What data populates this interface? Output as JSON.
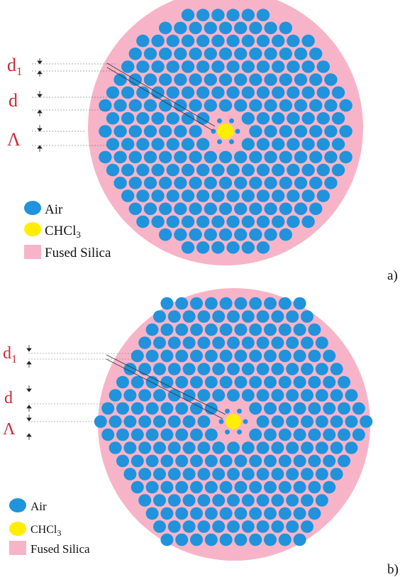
{
  "panels": [
    {
      "id": "a",
      "panel_label": "a)",
      "lattice": "circular",
      "dimension_labels": {
        "d1": "d",
        "d1_sub": "1",
        "d": "d",
        "pitch": "Λ"
      },
      "legend": [
        {
          "label": "Air",
          "color": "#1f93dc",
          "shape": "ellipse"
        },
        {
          "label": "CHCl",
          "sub": "3",
          "color": "#ffee00",
          "shape": "ellipse"
        },
        {
          "label": "Fused Silica",
          "color": "#f7b4c8",
          "shape": "square"
        }
      ]
    },
    {
      "id": "b",
      "panel_label": "b)",
      "lattice": "hexagonal",
      "dimension_labels": {
        "d1": "d",
        "d1_sub": "1",
        "d": "d",
        "pitch": "Λ"
      },
      "legend": [
        {
          "label": "Air",
          "color": "#1f93dc",
          "shape": "ellipse"
        },
        {
          "label": "CHCl",
          "sub": "3",
          "color": "#ffee00",
          "shape": "ellipse"
        },
        {
          "label": "Fused Silica",
          "color": "#f7b4c8",
          "shape": "square"
        }
      ]
    }
  ],
  "colors": {
    "silica": "#f7b4c8",
    "air": "#1f93dc",
    "core": "#ffee00",
    "label_red": "#d0283a"
  }
}
